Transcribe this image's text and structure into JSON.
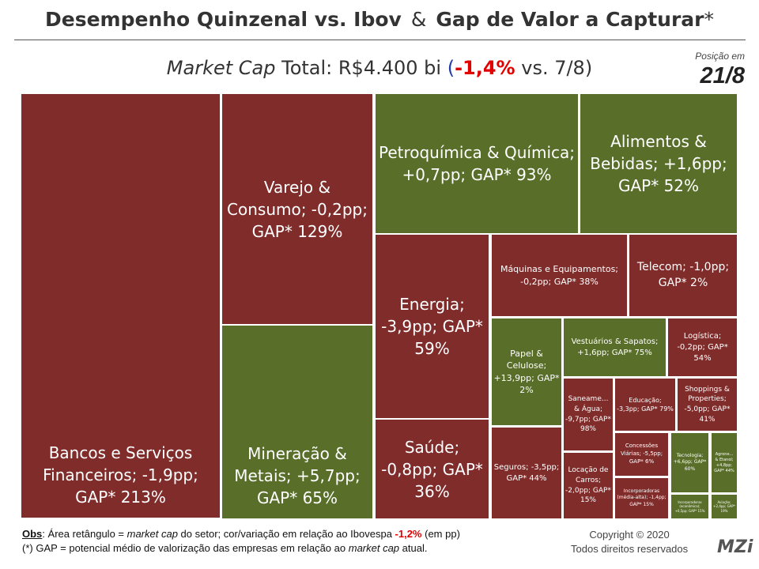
{
  "header": {
    "title_left": "Desempenho Quinzenal vs. Ibov",
    "title_amp": "&",
    "title_right": "Gap de Valor a Capturar",
    "title_asterisk": "*",
    "subtitle_metric": "Market Cap",
    "subtitle_total": " Total: R$4.400 bi",
    "subtitle_open": "(",
    "subtitle_change": "-1,4%",
    "subtitle_ref": " vs. 7/8)",
    "position_label": "Posição em",
    "position_date": "21/8"
  },
  "colors": {
    "negative": "#7f2c2b",
    "positive": "#586e29"
  },
  "chart_data": {
    "type": "treemap",
    "title": "Desempenho Quinzenal vs. Ibov & Gap de Valor a Capturar*",
    "subtitle": "Market Cap Total: R$4.400 bi (-1,4% vs. 7/8)",
    "total_market_cap": "R$4.400 bi",
    "change_vs_previous": "-1,4%",
    "ibovespa_change": "-1,2%",
    "items": [
      {
        "name": "Bancos e Serviços Financeiros",
        "label": "Bancos e Serviços Financeiros; -1,9pp; GAP* 213%",
        "rel_pp": -1.9,
        "gap_pct": 213
      },
      {
        "name": "Varejo & Consumo",
        "label": "Varejo & Consumo; -0,2pp; GAP* 129%",
        "rel_pp": -0.2,
        "gap_pct": 129
      },
      {
        "name": "Mineração & Metais",
        "label": "Mineração & Metais; +5,7pp; GAP* 65%",
        "rel_pp": 5.7,
        "gap_pct": 65
      },
      {
        "name": "Petroquímica & Química",
        "label": "Petroquímica & Química; +0,7pp; GAP* 93%",
        "rel_pp": 0.7,
        "gap_pct": 93
      },
      {
        "name": "Alimentos & Bebidas",
        "label": "Alimentos & Bebidas; +1,6pp; GAP* 52%",
        "rel_pp": 1.6,
        "gap_pct": 52
      },
      {
        "name": "Energia",
        "label": "Energia; -3,9pp; GAP* 59%",
        "rel_pp": -3.9,
        "gap_pct": 59
      },
      {
        "name": "Saúde",
        "label": "Saúde; -0,8pp; GAP* 36%",
        "rel_pp": -0.8,
        "gap_pct": 36
      },
      {
        "name": "Máquinas e Equipamentos",
        "label": "Máquinas e Equipamentos; -0,2pp; GAP* 38%",
        "rel_pp": -0.2,
        "gap_pct": 38
      },
      {
        "name": "Telecom",
        "label": "Telecom; -1,0pp; GAP* 2%",
        "rel_pp": -1.0,
        "gap_pct": 2
      },
      {
        "name": "Papel & Celulose",
        "label": "Papel & Celulose; +13,9pp; GAP* 2%",
        "rel_pp": 13.9,
        "gap_pct": 2
      },
      {
        "name": "Vestuários & Sapatos",
        "label": "Vestuários & Sapatos; +1,6pp; GAP* 75%",
        "rel_pp": 1.6,
        "gap_pct": 75
      },
      {
        "name": "Logística",
        "label": "Logística; -0,2pp; GAP* 54%",
        "rel_pp": -0.2,
        "gap_pct": 54
      },
      {
        "name": "Saneamento & Água",
        "label": "Saneame... & Água; -9,7pp; GAP* 98%",
        "rel_pp": -9.7,
        "gap_pct": 98
      },
      {
        "name": "Educação",
        "label": "Educação; -3,3pp; GAP* 79%",
        "rel_pp": -3.3,
        "gap_pct": 79
      },
      {
        "name": "Shoppings & Properties",
        "label": "Shoppings & Properties; -5,0pp; GAP* 41%",
        "rel_pp": -5.0,
        "gap_pct": 41
      },
      {
        "name": "Seguros",
        "label": "Seguros; -3,5pp; GAP* 44%",
        "rel_pp": -3.5,
        "gap_pct": 44
      },
      {
        "name": "Concessões Viárias",
        "label": "Concessões Viárias; -5,5pp; GAP* 6%",
        "rel_pp": -5.5,
        "gap_pct": 6
      },
      {
        "name": "Tecnologia",
        "label": "Tecnologia; +6,6pp; GAP* 60%",
        "rel_pp": 6.6,
        "gap_pct": 60
      },
      {
        "name": "Agronegócio & Etanol",
        "label": "Agrone... & Etanol; +4,8pp; GAP* 44%",
        "rel_pp": 4.8,
        "gap_pct": 44
      },
      {
        "name": "Locação de Carros",
        "label": "Locação de Carros; -2,0pp; GAP* 15%",
        "rel_pp": -2.0,
        "gap_pct": 15
      },
      {
        "name": "Incorporadoras (média-alta)",
        "label": "Incorporadoras (média-alta); -1,4pp; GAP* 15%",
        "rel_pp": -1.4,
        "gap_pct": 15
      },
      {
        "name": "Incorporadoras (econômica)",
        "label": "Incorporadoras (econômica); +0,5pp; GAP* 15%",
        "rel_pp": 0.5,
        "gap_pct": 15
      },
      {
        "name": "Aviação",
        "label": "Aviação; +2,4pp; GAP* 19%",
        "rel_pp": 2.4,
        "gap_pct": 19
      }
    ]
  },
  "footer": {
    "obs_label": "Obs",
    "obs_text_1": ": Área retângulo = ",
    "obs_italic": "market cap",
    "obs_text_2": " do setor; cor/variação em relação ao Ibovespa ",
    "obs_ibov": "-1,2%",
    "obs_text_3": " (em pp)",
    "gap_text_1": "(*) GAP = potencial médio de valorização das empresas em relação ao ",
    "gap_italic": "market cap",
    "gap_text_2": " atual.",
    "copyright_1": "Copyright © 2020",
    "copyright_2": "Todos direitos reservados",
    "logo": "MZi"
  }
}
